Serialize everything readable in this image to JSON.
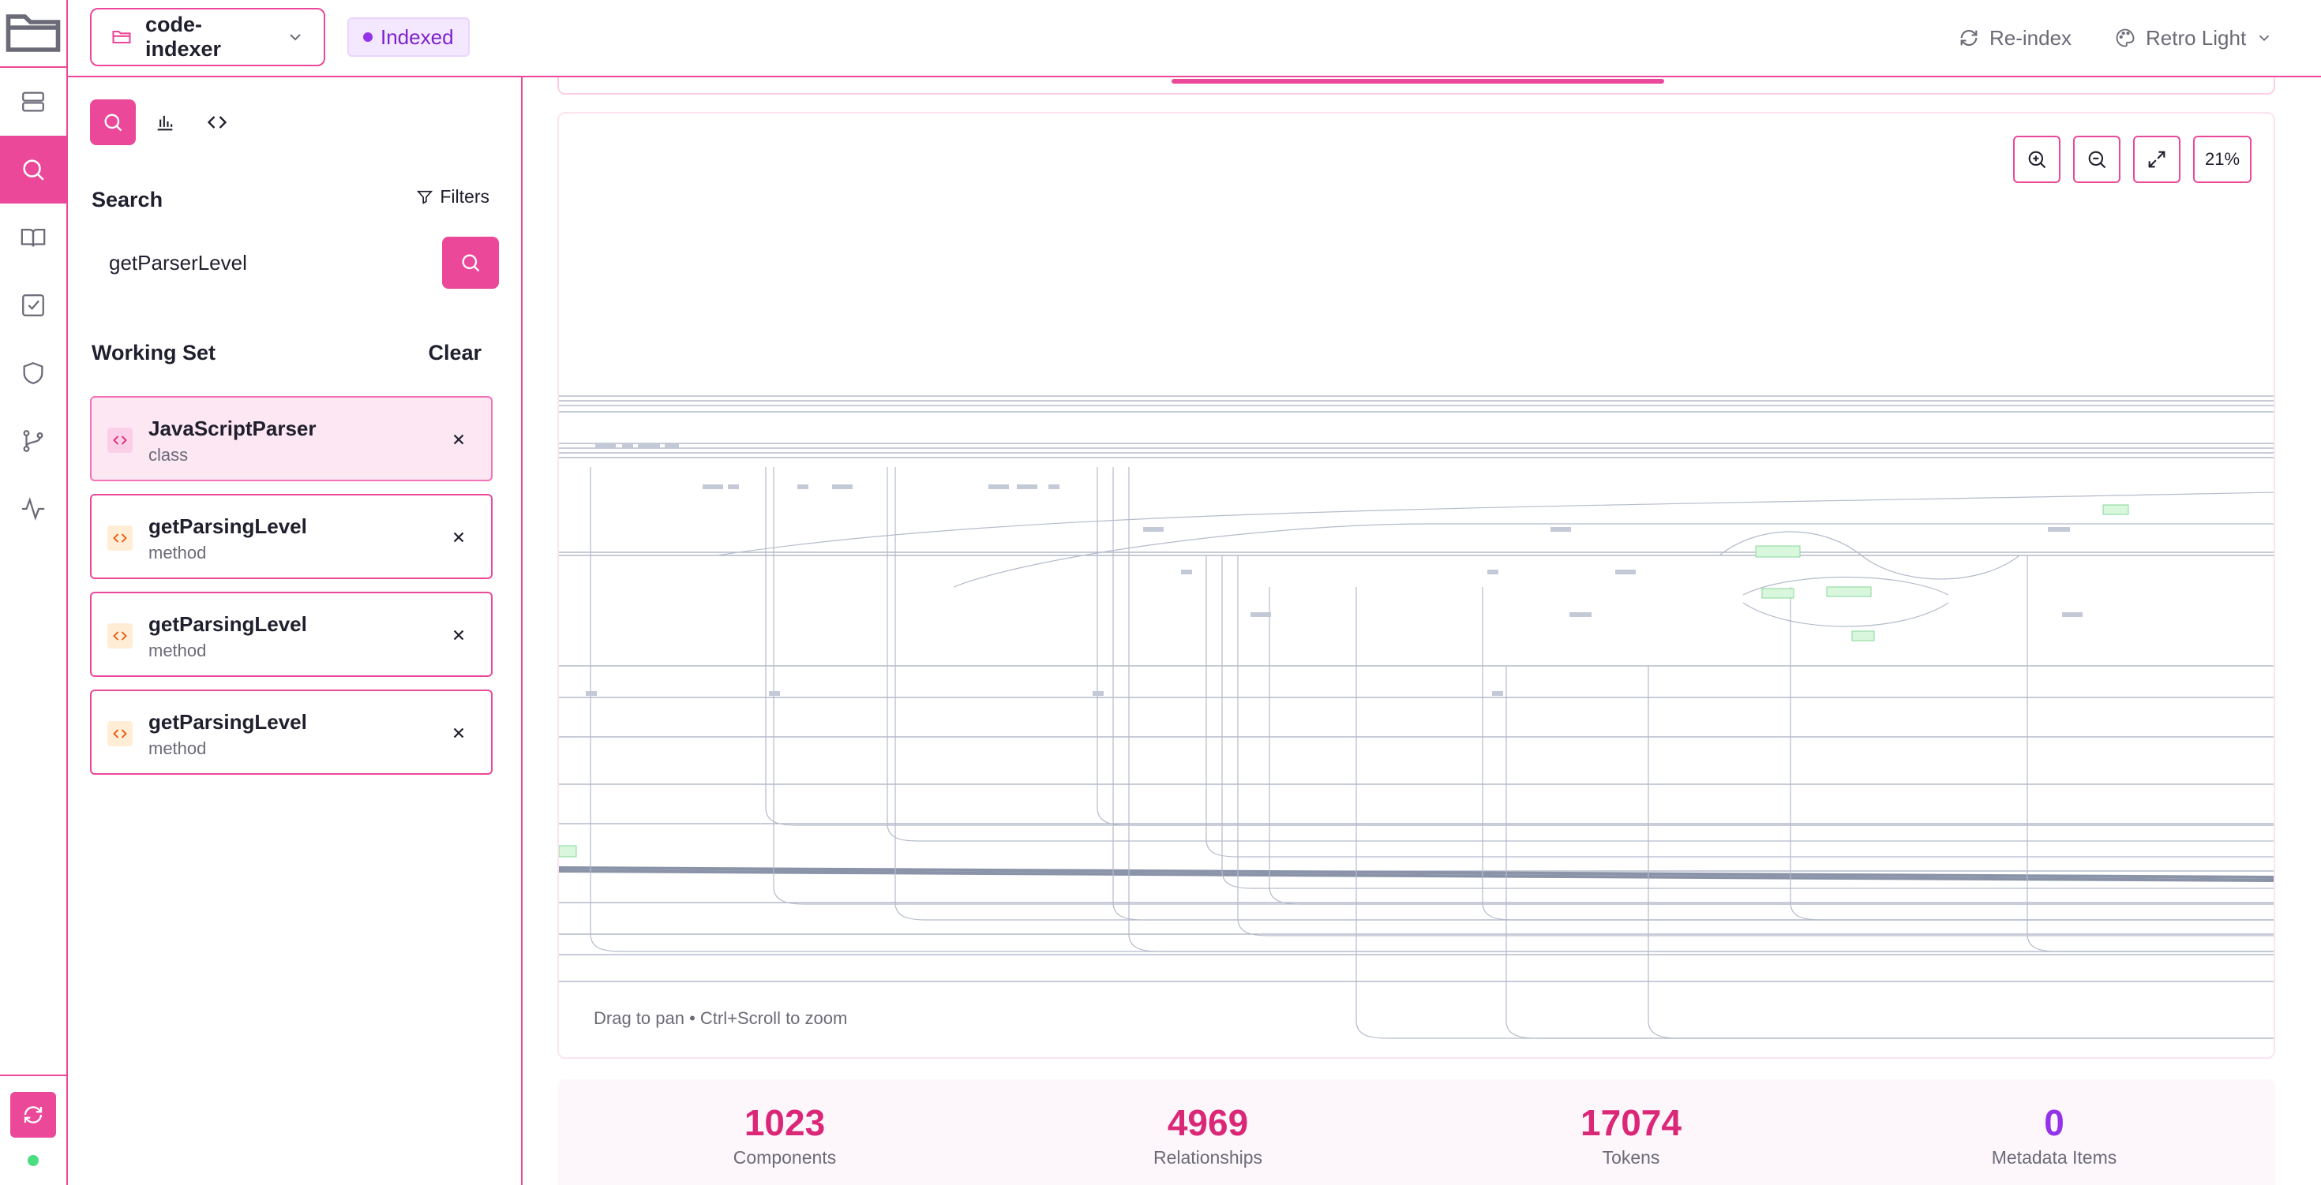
{
  "topbar": {
    "repo_name": "code-indexer",
    "status_badge": "Indexed",
    "reindex_label": "Re-index",
    "theme_label": "Retro Light"
  },
  "rail": {
    "items": [
      "folder-icon",
      "database-icon",
      "search-icon",
      "book-icon",
      "checklist-icon",
      "shield-icon",
      "git-branch-icon",
      "activity-icon"
    ],
    "active": "search-icon",
    "status_color": "#4ade80"
  },
  "panel": {
    "search_label": "Search",
    "filters_label": "Filters",
    "search_value": "getParserLevel",
    "working_set_label": "Working Set",
    "clear_label": "Clear",
    "working_set": [
      {
        "name": "JavaScriptParser",
        "kind": "class"
      },
      {
        "name": "getParsingLevel",
        "kind": "method"
      },
      {
        "name": "getParsingLevel",
        "kind": "method"
      },
      {
        "name": "getParsingLevel",
        "kind": "method"
      }
    ]
  },
  "graph": {
    "zoom_level": "21%",
    "hint": "Drag to pan • Ctrl+Scroll to zoom"
  },
  "stats": [
    {
      "value": "1023",
      "label": "Components"
    },
    {
      "value": "4969",
      "label": "Relationships"
    },
    {
      "value": "17074",
      "label": "Tokens"
    },
    {
      "value": "0",
      "label": "Metadata Items"
    }
  ],
  "colors": {
    "accent": "#ec4899",
    "badge_text": "#7e22ce",
    "metadata_value": "#9333ea"
  }
}
